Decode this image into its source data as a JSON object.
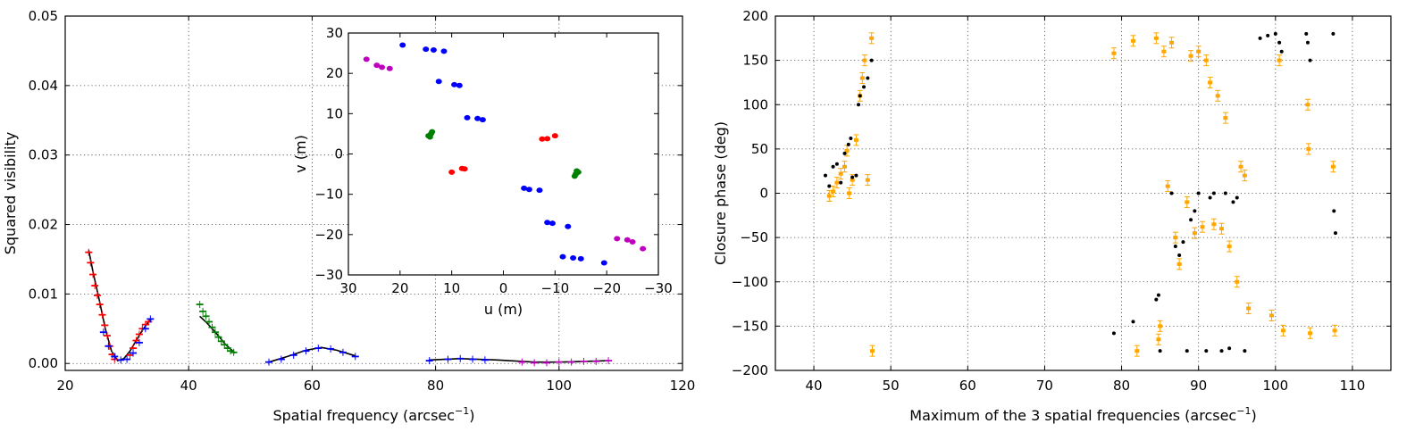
{
  "chart_data": [
    {
      "id": "visibility",
      "type": "scatter",
      "xlabel": "Spatial frequency (arcsec",
      "xlabel_sup": "−1",
      "xlabel_close": ")",
      "ylabel": "Squared visibility",
      "xlim": [
        20,
        120
      ],
      "ylim": [
        -0.001,
        0.05
      ],
      "xticks": [
        20,
        40,
        60,
        80,
        100,
        120
      ],
      "yticks": [
        0.0,
        0.01,
        0.02,
        0.03,
        0.04,
        0.05
      ],
      "ytick_labels": [
        "0.00",
        "0.01",
        "0.02",
        "0.03",
        "0.04",
        "0.05"
      ],
      "grid": true,
      "series": [
        {
          "name": "red",
          "color": "#ff0000",
          "points": [
            [
              23.8,
              0.016
            ],
            [
              24.1,
              0.0145
            ],
            [
              24.5,
              0.0128
            ],
            [
              24.8,
              0.0112
            ],
            [
              25.2,
              0.0098
            ],
            [
              25.6,
              0.0085
            ],
            [
              26.0,
              0.007
            ],
            [
              26.4,
              0.0055
            ],
            [
              26.8,
              0.004
            ],
            [
              27.2,
              0.0025
            ],
            [
              27.6,
              0.0013
            ],
            [
              28.0,
              0.0006
            ],
            [
              30.5,
              0.0012
            ],
            [
              31.0,
              0.0022
            ],
            [
              31.5,
              0.0033
            ],
            [
              32.0,
              0.0042
            ],
            [
              32.5,
              0.005
            ],
            [
              33.0,
              0.0056
            ],
            [
              33.5,
              0.006
            ]
          ]
        },
        {
          "name": "blue",
          "color": "#0000ff",
          "points": [
            [
              26.2,
              0.0045
            ],
            [
              27.0,
              0.0025
            ],
            [
              28.0,
              0.001
            ],
            [
              29.0,
              0.0005
            ],
            [
              30.0,
              0.0006
            ],
            [
              31.0,
              0.0015
            ],
            [
              32.0,
              0.003
            ],
            [
              33.0,
              0.005
            ],
            [
              33.8,
              0.0064
            ],
            [
              53.0,
              0.0002
            ],
            [
              55.0,
              0.0006
            ],
            [
              57.0,
              0.0012
            ],
            [
              59.0,
              0.0018
            ],
            [
              61.0,
              0.0022
            ],
            [
              63.0,
              0.0021
            ],
            [
              65.0,
              0.0016
            ],
            [
              67.0,
              0.001
            ],
            [
              79.0,
              0.0004
            ],
            [
              82.0,
              0.0006
            ],
            [
              84.0,
              0.0007
            ],
            [
              86.0,
              0.0006
            ],
            [
              88.0,
              0.0005
            ]
          ]
        },
        {
          "name": "green",
          "color": "#008000",
          "points": [
            [
              41.8,
              0.0085
            ],
            [
              42.3,
              0.0075
            ],
            [
              42.8,
              0.0068
            ],
            [
              43.3,
              0.006
            ],
            [
              43.8,
              0.0052
            ],
            [
              44.3,
              0.0045
            ],
            [
              44.8,
              0.0038
            ],
            [
              45.3,
              0.0032
            ],
            [
              45.8,
              0.0027
            ],
            [
              46.3,
              0.0022
            ],
            [
              46.8,
              0.0018
            ],
            [
              47.3,
              0.0016
            ]
          ]
        },
        {
          "name": "magenta",
          "color": "#bf00bf",
          "points": [
            [
              94.0,
              0.0002
            ],
            [
              96.0,
              0.0001
            ],
            [
              98.0,
              0.0001
            ],
            [
              100.0,
              0.0002
            ],
            [
              102.0,
              0.0002
            ],
            [
              104.0,
              0.0003
            ],
            [
              106.0,
              0.0003
            ],
            [
              108.0,
              0.0004
            ]
          ]
        }
      ],
      "model_lines": [
        [
          [
            23.8,
            0.0163
          ],
          [
            24.5,
            0.0132
          ],
          [
            25.5,
            0.0092
          ],
          [
            26.5,
            0.005
          ],
          [
            27.5,
            0.0018
          ],
          [
            28.5,
            0.0004
          ],
          [
            29.5,
            0.0007
          ],
          [
            30.5,
            0.0018
          ],
          [
            31.5,
            0.0033
          ],
          [
            32.5,
            0.0048
          ],
          [
            33.5,
            0.006
          ],
          [
            34.0,
            0.0064
          ]
        ],
        [
          [
            41.8,
            0.0068
          ],
          [
            43.0,
            0.0058
          ],
          [
            44.5,
            0.0043
          ],
          [
            46.0,
            0.0027
          ],
          [
            47.5,
            0.0015
          ]
        ],
        [
          [
            53.0,
            0.0002
          ],
          [
            56.0,
            0.001
          ],
          [
            59.0,
            0.0019
          ],
          [
            61.5,
            0.0023
          ],
          [
            64.0,
            0.0019
          ],
          [
            67.0,
            0.0011
          ]
        ],
        [
          [
            79.0,
            0.0005
          ],
          [
            84.0,
            0.0007
          ],
          [
            90.0,
            0.0005
          ],
          [
            96.0,
            0.0002
          ],
          [
            100.0,
            0.0002
          ],
          [
            104.0,
            0.0003
          ],
          [
            108.0,
            0.0004
          ]
        ]
      ]
    },
    {
      "id": "uv",
      "type": "scatter",
      "xlabel": "u (m)",
      "ylabel": "v (m)",
      "xlim": [
        30,
        -30
      ],
      "ylim": [
        -30,
        30
      ],
      "xticks": [
        30,
        20,
        10,
        0,
        -10,
        -20,
        -30
      ],
      "xtick_labels": [
        "30",
        "20",
        "10",
        "0",
        "−10",
        "−20",
        "−30"
      ],
      "yticks": [
        30,
        20,
        10,
        0,
        -10,
        -20,
        -30
      ],
      "ytick_labels": [
        "30",
        "20",
        "10",
        "0",
        "−10",
        "−20",
        "−30"
      ],
      "grid": false,
      "series": [
        {
          "name": "magenta",
          "color": "#bf00bf",
          "points": [
            [
              26.5,
              23.5
            ],
            [
              24.5,
              22
            ],
            [
              23.5,
              21.5
            ],
            [
              22,
              21.2
            ],
            [
              -22,
              -21
            ],
            [
              -24,
              -21.3
            ],
            [
              -25,
              -21.8
            ],
            [
              -27,
              -23.5
            ]
          ]
        },
        {
          "name": "blue",
          "color": "#0000ff",
          "points": [
            [
              19.5,
              27
            ],
            [
              15,
              26
            ],
            [
              13.5,
              25.8
            ],
            [
              11.5,
              25.5
            ],
            [
              12.5,
              18
            ],
            [
              9.5,
              17.2
            ],
            [
              8.5,
              17
            ],
            [
              7,
              9
            ],
            [
              5,
              8.8
            ],
            [
              4,
              8.5
            ],
            [
              -4,
              -8.5
            ],
            [
              -5,
              -8.8
            ],
            [
              -7,
              -9
            ],
            [
              -8.5,
              -17
            ],
            [
              -9.5,
              -17.2
            ],
            [
              -12.5,
              -18
            ],
            [
              -11.5,
              -25.5
            ],
            [
              -13.5,
              -25.8
            ],
            [
              -15,
              -26
            ],
            [
              -19.5,
              -27
            ]
          ]
        },
        {
          "name": "red",
          "color": "#ff0000",
          "points": [
            [
              -7.5,
              3.7
            ],
            [
              -8.5,
              3.8
            ],
            [
              -10,
              4.5
            ],
            [
              10,
              -4.5
            ],
            [
              8,
              -3.6
            ],
            [
              7.5,
              -3.7
            ]
          ]
        },
        {
          "name": "green",
          "color": "#008000",
          "points": [
            [
              14.5,
              4.5
            ],
            [
              14,
              5
            ],
            [
              13.8,
              5.5
            ],
            [
              14.2,
              4.2
            ],
            [
              -14.5,
              -4.5
            ],
            [
              -14,
              -5
            ],
            [
              -13.8,
              -5.5
            ],
            [
              -14.2,
              -4.2
            ]
          ]
        }
      ]
    },
    {
      "id": "closure",
      "type": "scatter",
      "xlabel": "Maximum of the 3 spatial frequencies (arcsec",
      "xlabel_sup": "−1",
      "xlabel_close": ")",
      "ylabel": "Closure phase (deg)",
      "xlim": [
        35,
        115
      ],
      "ylim": [
        -200,
        200
      ],
      "xticks": [
        40,
        50,
        60,
        70,
        80,
        90,
        100,
        110
      ],
      "yticks": [
        -200,
        -150,
        -100,
        -50,
        0,
        50,
        100,
        150,
        200
      ],
      "ytick_labels": [
        "−200",
        "−150",
        "−100",
        "−50",
        "0",
        "50",
        "100",
        "150",
        "200"
      ],
      "grid": true,
      "series": [
        {
          "name": "observed",
          "color": "#ffa500",
          "points": [
            [
              42.0,
              -3
            ],
            [
              42.5,
              2
            ],
            [
              43.0,
              12
            ],
            [
              43.5,
              22
            ],
            [
              44.0,
              30
            ],
            [
              44.3,
              48
            ],
            [
              44.6,
              0
            ],
            [
              45.0,
              15
            ],
            [
              45.5,
              60
            ],
            [
              46.0,
              110
            ],
            [
              46.3,
              130
            ],
            [
              46.6,
              150
            ],
            [
              47.0,
              15
            ],
            [
              47.5,
              175
            ],
            [
              47.6,
              -178
            ],
            [
              79.0,
              158
            ],
            [
              81.5,
              172
            ],
            [
              82.0,
              -178
            ],
            [
              84.5,
              175
            ],
            [
              84.8,
              -165
            ],
            [
              85.0,
              -150
            ],
            [
              85.5,
              160
            ],
            [
              86.0,
              8
            ],
            [
              86.5,
              170
            ],
            [
              87.0,
              -50
            ],
            [
              87.5,
              -80
            ],
            [
              88.5,
              -10
            ],
            [
              89.0,
              155
            ],
            [
              89.5,
              -45
            ],
            [
              90.0,
              160
            ],
            [
              90.5,
              -38
            ],
            [
              91.0,
              150
            ],
            [
              91.5,
              125
            ],
            [
              92.0,
              -35
            ],
            [
              92.5,
              110
            ],
            [
              93.0,
              -40
            ],
            [
              93.5,
              85
            ],
            [
              94.0,
              -60
            ],
            [
              95.0,
              -100
            ],
            [
              95.5,
              30
            ],
            [
              96.0,
              20
            ],
            [
              96.5,
              -130
            ],
            [
              99.5,
              -138
            ],
            [
              100.5,
              150
            ],
            [
              101.0,
              -155
            ],
            [
              104.2,
              100
            ],
            [
              104.3,
              50
            ],
            [
              104.5,
              -158
            ],
            [
              107.5,
              30
            ],
            [
              107.7,
              -155
            ]
          ]
        },
        {
          "name": "model",
          "color": "#000000",
          "points": [
            [
              41.5,
              20
            ],
            [
              42.0,
              8
            ],
            [
              42.5,
              30
            ],
            [
              43.0,
              33
            ],
            [
              43.5,
              12
            ],
            [
              44.0,
              45
            ],
            [
              44.5,
              55
            ],
            [
              44.8,
              62
            ],
            [
              45.0,
              18
            ],
            [
              45.5,
              20
            ],
            [
              45.8,
              100
            ],
            [
              46.0,
              110
            ],
            [
              46.5,
              120
            ],
            [
              47.0,
              130
            ],
            [
              47.5,
              150
            ],
            [
              79.0,
              -158
            ],
            [
              81.5,
              -145
            ],
            [
              84.5,
              -120
            ],
            [
              84.8,
              -115
            ],
            [
              85.0,
              -178
            ],
            [
              86.5,
              0
            ],
            [
              87.0,
              -60
            ],
            [
              87.5,
              -70
            ],
            [
              88.0,
              -55
            ],
            [
              88.5,
              -178
            ],
            [
              89.0,
              -30
            ],
            [
              89.5,
              -20
            ],
            [
              90.0,
              0
            ],
            [
              91.0,
              -178
            ],
            [
              91.5,
              -5
            ],
            [
              92.0,
              0
            ],
            [
              93.0,
              -178
            ],
            [
              93.5,
              0
            ],
            [
              94.0,
              -175
            ],
            [
              94.5,
              -10
            ],
            [
              95.0,
              -5
            ],
            [
              96.0,
              -178
            ],
            [
              98.0,
              175
            ],
            [
              99.0,
              178
            ],
            [
              100.0,
              180
            ],
            [
              100.5,
              170
            ],
            [
              100.8,
              160
            ],
            [
              104.0,
              180
            ],
            [
              104.2,
              170
            ],
            [
              104.5,
              150
            ],
            [
              107.5,
              180
            ],
            [
              107.6,
              -20
            ],
            [
              107.8,
              -45
            ]
          ]
        }
      ]
    }
  ]
}
